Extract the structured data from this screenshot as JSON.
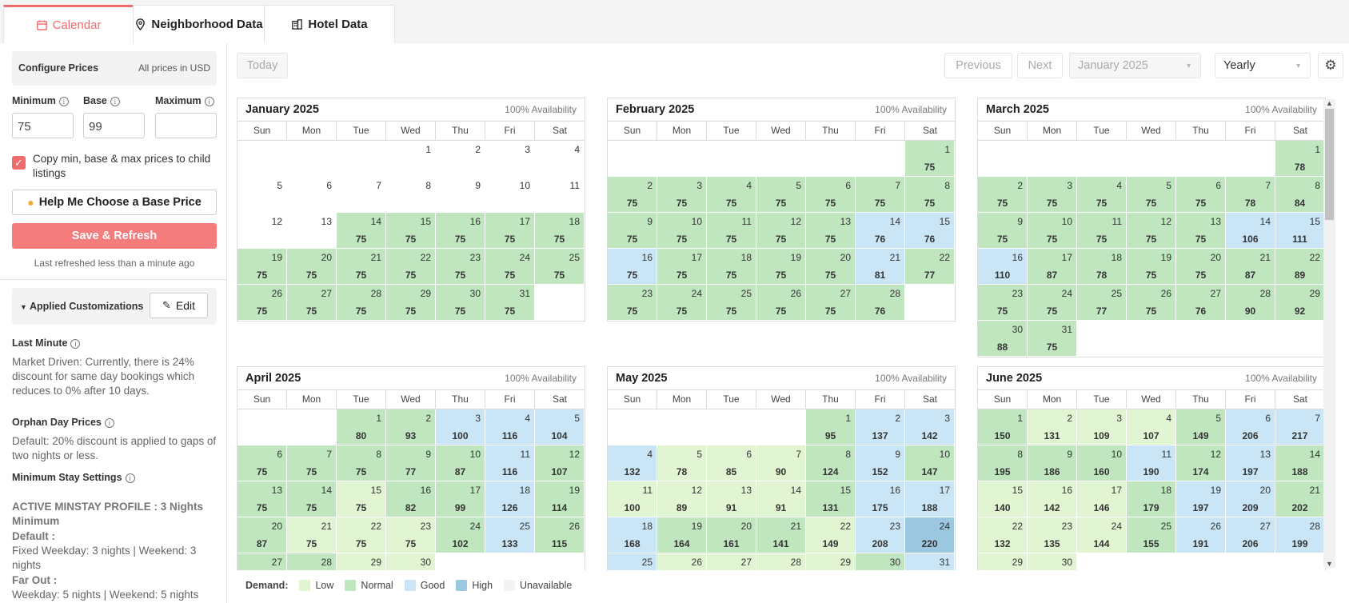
{
  "tabs": [
    {
      "label": "Calendar",
      "icon": "calendar-icon"
    },
    {
      "label": "Neighborhood Data",
      "icon": "map-pin-icon"
    },
    {
      "label": "Hotel Data",
      "icon": "hotel-icon"
    }
  ],
  "sidebar": {
    "configure": {
      "title": "Configure Prices",
      "currency_note": "All prices in USD"
    },
    "minimum": {
      "label": "Minimum",
      "value": "75"
    },
    "base": {
      "label": "Base",
      "value": "99"
    },
    "maximum": {
      "label": "Maximum",
      "value": ""
    },
    "copy_checkbox": {
      "label": "Copy min, base & max prices to child listings",
      "checked": true
    },
    "help_button": "Help Me Choose a Base Price",
    "save_button": "Save & Refresh",
    "last_refreshed": "Last refreshed less than a minute ago",
    "customizations": {
      "title": "Applied Customizations",
      "edit_label": "Edit"
    },
    "last_minute": {
      "title": "Last Minute",
      "text": "Market Driven: Currently, there is 24% discount for same day bookings which reduces to 0% after 10 days."
    },
    "orphan": {
      "title": "Orphan Day Prices",
      "text": "Default: 20% discount is applied to gaps of two nights or less."
    },
    "minstay": {
      "title": "Minimum Stay Settings",
      "profile": "ACTIVE MINSTAY PROFILE : 3 Nights Minimum",
      "default_label": "Default :",
      "default_text": "Fixed Weekday: 3 nights | Weekend: 3 nights",
      "farout_label": "Far Out :",
      "farout_text": "Weekday: 5 nights | Weekend: 5 nights"
    }
  },
  "toolbar": {
    "today": "Today",
    "previous": "Previous",
    "next": "Next",
    "month_select": "January 2025",
    "view_select": "Yearly"
  },
  "weekdays": [
    "Sun",
    "Mon",
    "Tue",
    "Wed",
    "Thu",
    "Fri",
    "Sat"
  ],
  "months": [
    {
      "title": "January 2025",
      "availability": "100% Availability",
      "offset": 3,
      "days": [
        [
          1,
          "",
          "none"
        ],
        [
          2,
          "",
          "none"
        ],
        [
          3,
          "",
          "none"
        ],
        [
          4,
          "",
          "none"
        ],
        [
          5,
          "",
          "none"
        ],
        [
          6,
          "",
          "none"
        ],
        [
          7,
          "",
          "none"
        ],
        [
          8,
          "",
          "none"
        ],
        [
          9,
          "",
          "none"
        ],
        [
          10,
          "",
          "none"
        ],
        [
          11,
          "",
          "none"
        ],
        [
          12,
          "",
          "none"
        ],
        [
          13,
          "",
          "none"
        ],
        [
          14,
          "75",
          "normal"
        ],
        [
          15,
          "75",
          "normal"
        ],
        [
          16,
          "75",
          "normal"
        ],
        [
          17,
          "75",
          "normal"
        ],
        [
          18,
          "75",
          "normal"
        ],
        [
          19,
          "75",
          "normal"
        ],
        [
          20,
          "75",
          "normal"
        ],
        [
          21,
          "75",
          "normal"
        ],
        [
          22,
          "75",
          "normal"
        ],
        [
          23,
          "75",
          "normal"
        ],
        [
          24,
          "75",
          "normal"
        ],
        [
          25,
          "75",
          "normal"
        ],
        [
          26,
          "75",
          "normal"
        ],
        [
          27,
          "75",
          "normal"
        ],
        [
          28,
          "75",
          "normal"
        ],
        [
          29,
          "75",
          "normal"
        ],
        [
          30,
          "75",
          "normal"
        ],
        [
          31,
          "75",
          "normal"
        ]
      ]
    },
    {
      "title": "February 2025",
      "availability": "100% Availability",
      "offset": 6,
      "days": [
        [
          1,
          "75",
          "normal"
        ],
        [
          2,
          "75",
          "normal"
        ],
        [
          3,
          "75",
          "normal"
        ],
        [
          4,
          "75",
          "normal"
        ],
        [
          5,
          "75",
          "normal"
        ],
        [
          6,
          "75",
          "normal"
        ],
        [
          7,
          "75",
          "normal"
        ],
        [
          8,
          "75",
          "normal"
        ],
        [
          9,
          "75",
          "normal"
        ],
        [
          10,
          "75",
          "normal"
        ],
        [
          11,
          "75",
          "normal"
        ],
        [
          12,
          "75",
          "normal"
        ],
        [
          13,
          "75",
          "normal"
        ],
        [
          14,
          "76",
          "good"
        ],
        [
          15,
          "76",
          "good"
        ],
        [
          16,
          "75",
          "good"
        ],
        [
          17,
          "75",
          "normal"
        ],
        [
          18,
          "75",
          "normal"
        ],
        [
          19,
          "75",
          "normal"
        ],
        [
          20,
          "75",
          "normal"
        ],
        [
          21,
          "81",
          "good"
        ],
        [
          22,
          "77",
          "normal"
        ],
        [
          23,
          "75",
          "normal"
        ],
        [
          24,
          "75",
          "normal"
        ],
        [
          25,
          "75",
          "normal"
        ],
        [
          26,
          "75",
          "normal"
        ],
        [
          27,
          "75",
          "normal"
        ],
        [
          28,
          "76",
          "normal"
        ]
      ]
    },
    {
      "title": "March 2025",
      "availability": "100% Availability",
      "offset": 6,
      "days": [
        [
          1,
          "78",
          "normal"
        ],
        [
          2,
          "75",
          "normal"
        ],
        [
          3,
          "75",
          "normal"
        ],
        [
          4,
          "75",
          "normal"
        ],
        [
          5,
          "75",
          "normal"
        ],
        [
          6,
          "75",
          "normal"
        ],
        [
          7,
          "78",
          "normal"
        ],
        [
          8,
          "84",
          "normal"
        ],
        [
          9,
          "75",
          "normal"
        ],
        [
          10,
          "75",
          "normal"
        ],
        [
          11,
          "75",
          "normal"
        ],
        [
          12,
          "75",
          "normal"
        ],
        [
          13,
          "75",
          "normal"
        ],
        [
          14,
          "106",
          "good"
        ],
        [
          15,
          "111",
          "good"
        ],
        [
          16,
          "110",
          "good"
        ],
        [
          17,
          "87",
          "normal"
        ],
        [
          18,
          "78",
          "normal"
        ],
        [
          19,
          "75",
          "normal"
        ],
        [
          20,
          "75",
          "normal"
        ],
        [
          21,
          "87",
          "normal"
        ],
        [
          22,
          "89",
          "normal"
        ],
        [
          23,
          "75",
          "normal"
        ],
        [
          24,
          "75",
          "normal"
        ],
        [
          25,
          "77",
          "normal"
        ],
        [
          26,
          "75",
          "normal"
        ],
        [
          27,
          "76",
          "normal"
        ],
        [
          28,
          "90",
          "normal"
        ],
        [
          29,
          "92",
          "normal"
        ],
        [
          30,
          "88",
          "normal"
        ],
        [
          31,
          "75",
          "normal"
        ]
      ]
    },
    {
      "title": "April 2025",
      "availability": "100% Availability",
      "offset": 2,
      "days": [
        [
          1,
          "80",
          "normal"
        ],
        [
          2,
          "93",
          "normal"
        ],
        [
          3,
          "100",
          "good"
        ],
        [
          4,
          "116",
          "good"
        ],
        [
          5,
          "104",
          "good"
        ],
        [
          6,
          "75",
          "normal"
        ],
        [
          7,
          "75",
          "normal"
        ],
        [
          8,
          "75",
          "normal"
        ],
        [
          9,
          "77",
          "normal"
        ],
        [
          10,
          "87",
          "normal"
        ],
        [
          11,
          "116",
          "good"
        ],
        [
          12,
          "107",
          "normal"
        ],
        [
          13,
          "75",
          "normal"
        ],
        [
          14,
          "75",
          "normal"
        ],
        [
          15,
          "75",
          "low"
        ],
        [
          16,
          "82",
          "normal"
        ],
        [
          17,
          "99",
          "normal"
        ],
        [
          18,
          "126",
          "good"
        ],
        [
          19,
          "114",
          "normal"
        ],
        [
          20,
          "87",
          "normal"
        ],
        [
          21,
          "75",
          "low"
        ],
        [
          22,
          "75",
          "low"
        ],
        [
          23,
          "75",
          "low"
        ],
        [
          24,
          "102",
          "normal"
        ],
        [
          25,
          "133",
          "good"
        ],
        [
          26,
          "115",
          "normal"
        ],
        [
          27,
          "",
          "normal"
        ],
        [
          28,
          "",
          "normal"
        ],
        [
          29,
          "",
          "low"
        ],
        [
          30,
          "",
          "low"
        ]
      ]
    },
    {
      "title": "May 2025",
      "availability": "100% Availability",
      "offset": 4,
      "days": [
        [
          1,
          "95",
          "normal"
        ],
        [
          2,
          "137",
          "good"
        ],
        [
          3,
          "142",
          "good"
        ],
        [
          4,
          "132",
          "good"
        ],
        [
          5,
          "78",
          "low"
        ],
        [
          6,
          "85",
          "low"
        ],
        [
          7,
          "90",
          "low"
        ],
        [
          8,
          "124",
          "normal"
        ],
        [
          9,
          "152",
          "good"
        ],
        [
          10,
          "147",
          "normal"
        ],
        [
          11,
          "100",
          "low"
        ],
        [
          12,
          "89",
          "low"
        ],
        [
          13,
          "91",
          "low"
        ],
        [
          14,
          "91",
          "low"
        ],
        [
          15,
          "131",
          "normal"
        ],
        [
          16,
          "175",
          "good"
        ],
        [
          17,
          "188",
          "good"
        ],
        [
          18,
          "168",
          "good"
        ],
        [
          19,
          "164",
          "normal"
        ],
        [
          20,
          "161",
          "normal"
        ],
        [
          21,
          "141",
          "normal"
        ],
        [
          22,
          "149",
          "low"
        ],
        [
          23,
          "208",
          "good"
        ],
        [
          24,
          "220",
          "high"
        ],
        [
          25,
          "",
          "good"
        ],
        [
          26,
          "",
          "low"
        ],
        [
          27,
          "",
          "low"
        ],
        [
          28,
          "",
          "low"
        ],
        [
          29,
          "",
          "low"
        ],
        [
          30,
          "",
          "normal"
        ],
        [
          31,
          "",
          "good"
        ]
      ]
    },
    {
      "title": "June 2025",
      "availability": "100% Availability",
      "offset": 0,
      "days": [
        [
          1,
          "150",
          "normal"
        ],
        [
          2,
          "131",
          "low"
        ],
        [
          3,
          "109",
          "low"
        ],
        [
          4,
          "107",
          "low"
        ],
        [
          5,
          "149",
          "normal"
        ],
        [
          6,
          "206",
          "good"
        ],
        [
          7,
          "217",
          "good"
        ],
        [
          8,
          "195",
          "normal"
        ],
        [
          9,
          "186",
          "normal"
        ],
        [
          10,
          "160",
          "normal"
        ],
        [
          11,
          "190",
          "good"
        ],
        [
          12,
          "174",
          "normal"
        ],
        [
          13,
          "197",
          "good"
        ],
        [
          14,
          "188",
          "normal"
        ],
        [
          15,
          "140",
          "low"
        ],
        [
          16,
          "142",
          "low"
        ],
        [
          17,
          "146",
          "low"
        ],
        [
          18,
          "179",
          "normal"
        ],
        [
          19,
          "197",
          "good"
        ],
        [
          20,
          "209",
          "good"
        ],
        [
          21,
          "202",
          "normal"
        ],
        [
          22,
          "132",
          "low"
        ],
        [
          23,
          "135",
          "low"
        ],
        [
          24,
          "144",
          "low"
        ],
        [
          25,
          "155",
          "normal"
        ],
        [
          26,
          "191",
          "good"
        ],
        [
          27,
          "206",
          "good"
        ],
        [
          28,
          "199",
          "good"
        ],
        [
          29,
          "",
          "low"
        ],
        [
          30,
          "",
          "low"
        ]
      ]
    }
  ],
  "legend": {
    "title": "Demand:",
    "items": [
      {
        "label": "Low",
        "color": "#e2f5d2"
      },
      {
        "label": "Normal",
        "color": "#bfe6bf"
      },
      {
        "label": "Good",
        "color": "#c9e5f6"
      },
      {
        "label": "High",
        "color": "#9cc7e0"
      },
      {
        "label": "Unavailable",
        "color": "#f1f3f5"
      }
    ]
  },
  "colors": {
    "accent": "#f06b6b",
    "low": "#e2f5d2",
    "normal": "#bfe6bf",
    "good": "#c9e5f6",
    "high": "#9cc7e0"
  }
}
